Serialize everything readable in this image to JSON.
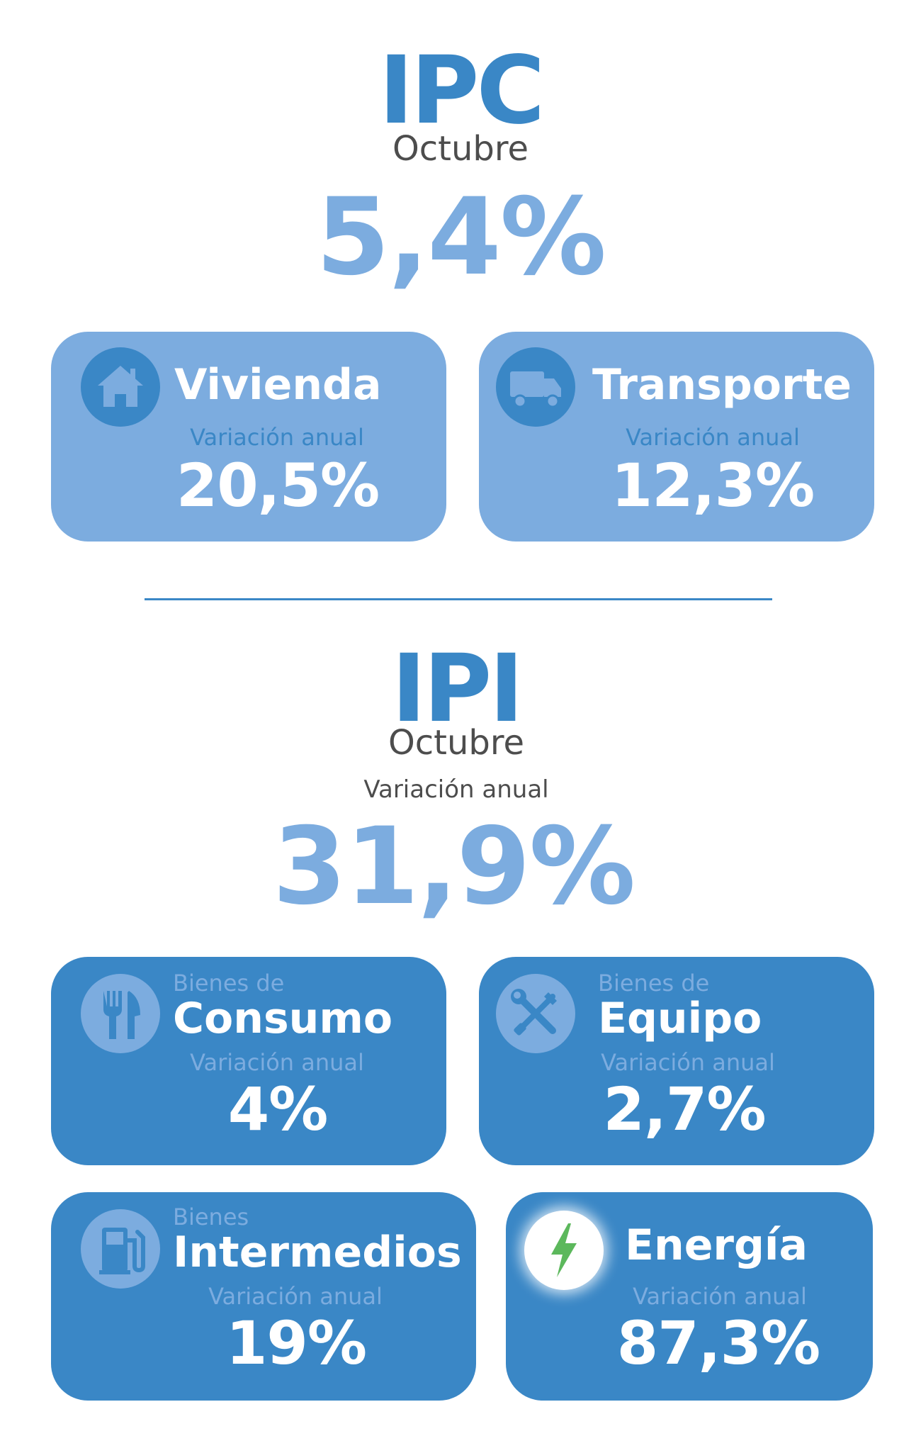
{
  "ipc": {
    "title": "IPC",
    "month": "Octubre",
    "value": "5,4%",
    "cards": [
      {
        "title": "Vivienda",
        "sublabel": "Variación anual",
        "value": "20,5%",
        "icon": "house-icon"
      },
      {
        "title": "Transporte",
        "sublabel": "Variación anual",
        "value": "12,3%",
        "icon": "truck-icon"
      }
    ]
  },
  "ipi": {
    "title": "IPI",
    "month": "Octubre",
    "sublabel": "Variación anual",
    "value": "31,9%",
    "cards": [
      {
        "pre": "Bienes de",
        "title": "Consumo",
        "sublabel": "Variación anual",
        "value": "4%",
        "icon": "fork-knife-icon"
      },
      {
        "pre": "Bienes de",
        "title": "Equipo",
        "sublabel": "Variación anual",
        "value": "2,7%",
        "icon": "wrench-screwdriver-icon"
      },
      {
        "pre": "Bienes",
        "title": "Intermedios",
        "sublabel": "Variación anual",
        "value": "19%",
        "icon": "fuel-pump-icon"
      },
      {
        "title": "Energía",
        "sublabel": "Variación anual",
        "value": "87,3%",
        "icon": "lightning-bolt-icon"
      }
    ]
  },
  "colors": {
    "primary": "#3a87c6",
    "light": "#7cacdf",
    "icon_bg_light": "#3a87c6",
    "icon_bg_dark": "#7cacdf",
    "energy_bolt": "#5cb85c",
    "month_text": "#4d4d4d",
    "white": "#ffffff"
  }
}
